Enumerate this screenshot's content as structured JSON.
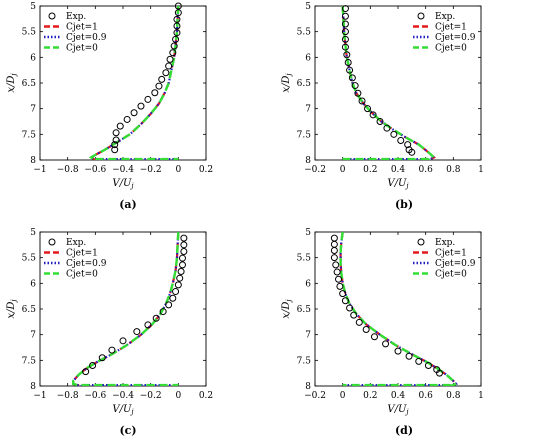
{
  "legend": {
    "exp": "Exp.",
    "cjet1": "Cjet=1",
    "cjet09": "Cjet=0.9",
    "cjet0": "Cjet=0"
  },
  "colors": {
    "cjet1": "#e41a1c",
    "cjet09": "#1f1fbf",
    "cjet0": "#33dd33",
    "exp": "#000000"
  },
  "chart_data": [
    {
      "type": "line",
      "caption": "(a)",
      "xlabel": "V/U_j",
      "ylabel": "x/D_j",
      "xlim": [
        -1,
        0.2
      ],
      "ylim": [
        5,
        8
      ],
      "y_reversed": true,
      "xticks": [
        -1,
        -0.8,
        -0.6,
        -0.4,
        -0.2,
        0,
        0.2
      ],
      "xtick_labels": [
        "−1",
        "−0.8",
        "−0.6",
        "−0.4",
        "−0.2",
        "0",
        "0.2"
      ],
      "yticks": [
        5,
        5.5,
        6,
        6.5,
        7,
        7.5,
        8
      ],
      "yticks_labels": [
        "5",
        "5.5",
        "6",
        "6.5",
        "7",
        "7.5",
        "8"
      ],
      "legend_position": "top-left",
      "experiment": {
        "x": [
          0.0,
          0.0,
          -0.01,
          -0.01,
          -0.01,
          -0.02,
          -0.03,
          -0.04,
          -0.06,
          -0.07,
          -0.09,
          -0.12,
          -0.14,
          -0.17,
          -0.22,
          -0.27,
          -0.32,
          -0.37,
          -0.42,
          -0.45,
          -0.45,
          -0.46,
          -0.46
        ],
        "y": [
          5.0,
          5.13,
          5.26,
          5.39,
          5.52,
          5.65,
          5.78,
          5.91,
          6.04,
          6.17,
          6.3,
          6.43,
          6.56,
          6.69,
          6.82,
          6.95,
          7.08,
          7.21,
          7.34,
          7.47,
          7.61,
          7.7,
          7.8
        ]
      },
      "profile": {
        "x": [
          0.0,
          -0.005,
          -0.01,
          -0.02,
          -0.03,
          -0.05,
          -0.07,
          -0.1,
          -0.14,
          -0.2,
          -0.27,
          -0.35,
          -0.44,
          -0.53,
          -0.6,
          -0.63,
          -0.6
        ],
        "y": [
          5.0,
          5.25,
          5.5,
          5.75,
          6.0,
          6.25,
          6.5,
          6.7,
          6.9,
          7.1,
          7.3,
          7.5,
          7.65,
          7.8,
          7.9,
          7.95,
          8.0
        ]
      }
    },
    {
      "type": "line",
      "caption": "(b)",
      "xlabel": "V/U_j",
      "ylabel": "x/D_j",
      "xlim": [
        -0.2,
        1
      ],
      "ylim": [
        5,
        8
      ],
      "y_reversed": true,
      "xticks": [
        -0.2,
        0,
        0.2,
        0.4,
        0.6,
        0.8,
        1
      ],
      "xtick_labels": [
        "−0.2",
        "0",
        "0.2",
        "0.4",
        "0.6",
        "0.8",
        "1"
      ],
      "yticks": [
        5,
        5.5,
        6,
        6.5,
        7,
        7.5,
        8
      ],
      "yticks_labels": [
        "5",
        "5.5",
        "6",
        "6.5",
        "7",
        "7.5",
        "8"
      ],
      "legend_position": "top-right",
      "experiment": {
        "x": [
          0.02,
          0.02,
          0.02,
          0.02,
          0.02,
          0.02,
          0.03,
          0.04,
          0.05,
          0.07,
          0.09,
          0.11,
          0.14,
          0.18,
          0.22,
          0.27,
          0.32,
          0.37,
          0.42,
          0.47,
          0.48,
          0.5
        ],
        "y": [
          5.05,
          5.2,
          5.35,
          5.5,
          5.65,
          5.8,
          5.95,
          6.1,
          6.25,
          6.4,
          6.55,
          6.7,
          6.85,
          7.0,
          7.12,
          7.25,
          7.38,
          7.5,
          7.62,
          7.7,
          7.8,
          7.85
        ]
      },
      "profile": {
        "x": [
          0.0,
          0.005,
          0.01,
          0.02,
          0.03,
          0.05,
          0.07,
          0.1,
          0.15,
          0.2,
          0.28,
          0.36,
          0.45,
          0.55,
          0.62,
          0.66,
          0.62
        ],
        "y": [
          5.0,
          5.25,
          5.5,
          5.75,
          6.0,
          6.25,
          6.5,
          6.7,
          6.9,
          7.05,
          7.25,
          7.4,
          7.55,
          7.7,
          7.85,
          7.95,
          8.0
        ]
      }
    },
    {
      "type": "line",
      "caption": "(c)",
      "xlabel": "V/U_j",
      "ylabel": "x/D_j",
      "xlim": [
        -1,
        0.2
      ],
      "ylim": [
        5,
        8
      ],
      "y_reversed": true,
      "xticks": [
        -1,
        -0.8,
        -0.6,
        -0.4,
        -0.2,
        0,
        0.2
      ],
      "xtick_labels": [
        "−1",
        "−0.8",
        "−0.6",
        "−0.4",
        "−0.2",
        "0",
        "0.2"
      ],
      "yticks": [
        5,
        5.5,
        6,
        6.5,
        7,
        7.5,
        8
      ],
      "yticks_labels": [
        "5",
        "5.5",
        "6",
        "6.5",
        "7",
        "7.5",
        "8"
      ],
      "legend_position": "top-left",
      "experiment": {
        "x": [
          0.04,
          0.04,
          0.04,
          0.03,
          0.03,
          0.02,
          0.01,
          0.0,
          -0.02,
          -0.04,
          -0.07,
          -0.11,
          -0.16,
          -0.22,
          -0.3,
          -0.4,
          -0.48,
          -0.55,
          -0.62,
          -0.67
        ],
        "y": [
          5.12,
          5.25,
          5.38,
          5.51,
          5.64,
          5.77,
          5.9,
          6.03,
          6.16,
          6.29,
          6.42,
          6.55,
          6.68,
          6.81,
          6.94,
          7.12,
          7.3,
          7.45,
          7.6,
          7.72
        ]
      },
      "profile": {
        "x": [
          0.0,
          -0.005,
          -0.01,
          -0.02,
          -0.04,
          -0.06,
          -0.09,
          -0.13,
          -0.19,
          -0.27,
          -0.37,
          -0.48,
          -0.58,
          -0.66,
          -0.72,
          -0.76,
          -0.76,
          -0.7
        ],
        "y": [
          5.0,
          5.25,
          5.5,
          5.75,
          6.0,
          6.2,
          6.4,
          6.6,
          6.8,
          7.0,
          7.2,
          7.38,
          7.52,
          7.65,
          7.78,
          7.9,
          7.96,
          8.0
        ]
      }
    },
    {
      "type": "line",
      "caption": "(d)",
      "xlabel": "V/U_j",
      "ylabel": "x/D_j",
      "xlim": [
        -0.2,
        1
      ],
      "ylim": [
        5,
        8
      ],
      "y_reversed": true,
      "xticks": [
        -0.2,
        0,
        0.2,
        0.4,
        0.6,
        0.8,
        1
      ],
      "xtick_labels": [
        "−0.2",
        "0",
        "0.2",
        "0.4",
        "0.6",
        "0.8",
        "1"
      ],
      "yticks": [
        5,
        5.5,
        6,
        6.5,
        7,
        7.5,
        8
      ],
      "yticks_labels": [
        "5",
        "5.5",
        "6",
        "6.5",
        "7",
        "7.5",
        "8"
      ],
      "legend_position": "top-right",
      "experiment": {
        "x": [
          -0.06,
          -0.06,
          -0.06,
          -0.06,
          -0.05,
          -0.04,
          -0.03,
          -0.02,
          0.0,
          0.02,
          0.05,
          0.08,
          0.12,
          0.17,
          0.23,
          0.31,
          0.4,
          0.48,
          0.55,
          0.62,
          0.68,
          0.7
        ],
        "y": [
          5.12,
          5.24,
          5.36,
          5.5,
          5.64,
          5.78,
          5.92,
          6.06,
          6.2,
          6.34,
          6.48,
          6.62,
          6.76,
          6.9,
          7.04,
          7.18,
          7.32,
          7.42,
          7.52,
          7.6,
          7.68,
          7.75
        ]
      },
      "profile": {
        "x": [
          0.0,
          -0.01,
          -0.015,
          -0.015,
          -0.01,
          0.0,
          0.02,
          0.05,
          0.1,
          0.17,
          0.27,
          0.38,
          0.5,
          0.6,
          0.68,
          0.75,
          0.8,
          0.82,
          0.78
        ],
        "y": [
          5.0,
          5.2,
          5.4,
          5.6,
          5.8,
          6.0,
          6.2,
          6.4,
          6.6,
          6.8,
          7.0,
          7.2,
          7.38,
          7.52,
          7.65,
          7.78,
          7.9,
          7.96,
          8.0
        ]
      }
    }
  ]
}
